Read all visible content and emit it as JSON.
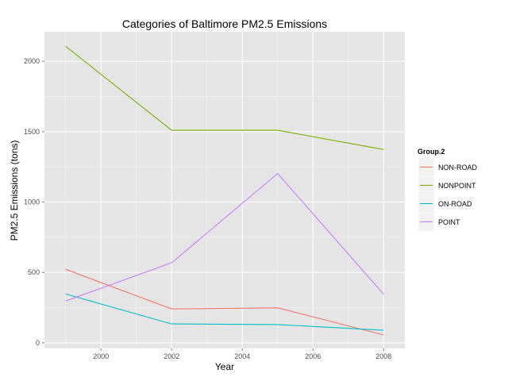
{
  "chart_data": {
    "type": "line",
    "title": "Categories of Baltimore PM2.5 Emissions",
    "xlabel": "Year",
    "ylabel": "PM2.5 Emissions (tons)",
    "x": [
      1999,
      2002,
      2005,
      2008
    ],
    "xlim": [
      1998.4,
      2008.6
    ],
    "ylim": [
      -40,
      2210
    ],
    "x_ticks": [
      2000,
      2002,
      2004,
      2006,
      2008
    ],
    "x_tick_labels": [
      "2000",
      "2002",
      "2004",
      "2006",
      "2008"
    ],
    "y_ticks": [
      0,
      500,
      1000,
      1500,
      2000
    ],
    "y_tick_labels": [
      "0",
      "500",
      "1000",
      "1500",
      "2000"
    ],
    "grid": true,
    "legend_title": "Group.2",
    "legend_position": "right",
    "series": [
      {
        "name": "NON-ROAD",
        "color": "#F8766D",
        "values": [
          522,
          241,
          249,
          56
        ]
      },
      {
        "name": "NONPOINT",
        "color": "#7CAE00",
        "values": [
          2107,
          1510,
          1510,
          1374
        ]
      },
      {
        "name": "ON-ROAD",
        "color": "#00BFC4",
        "values": [
          347,
          134,
          130,
          89
        ]
      },
      {
        "name": "POINT",
        "color": "#C77CFF",
        "values": [
          297,
          569,
          1203,
          345
        ]
      }
    ]
  }
}
